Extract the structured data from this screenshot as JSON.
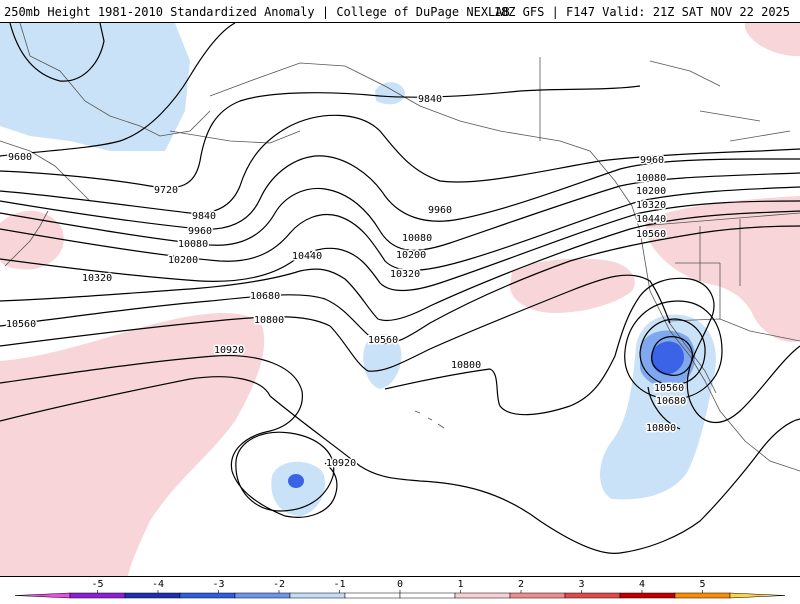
{
  "header": {
    "title_left": "250mb Height 1981-2010 Standardized Anomaly | College of DuPage NEXLAB",
    "title_right": "18Z GFS | F147 Valid: 21Z SAT NOV 22 2025"
  },
  "map": {
    "variable": "250mb geopotential height (m) with standardized anomaly shading",
    "contour_labels": [
      "9600",
      "9720",
      "9840",
      "9960",
      "10080",
      "10200",
      "10320",
      "10440",
      "10560",
      "10680",
      "10800",
      "10920",
      "9840",
      "9960",
      "10080",
      "10200",
      "10320",
      "10560",
      "9960",
      "10080",
      "10200",
      "10320",
      "10440",
      "10560",
      "10560",
      "10680",
      "10800",
      "10920",
      "10800"
    ],
    "colors": {
      "neg_light": "#c9e2f7",
      "neg_mid": "#7fa8ee",
      "neg_strong": "#3b63e8",
      "pos_light": "#f8d5d8",
      "contour": "#000000",
      "coast": "#555555"
    }
  },
  "colorbar": {
    "ticks": [
      "-5",
      "-4",
      "-3",
      "-2",
      "-1",
      "0",
      "1",
      "2",
      "3",
      "4",
      "5"
    ],
    "colors": [
      "#e94ee2",
      "#8e1fd6",
      "#1e2fb5",
      "#2f5de0",
      "#6d95ee",
      "#c4dcf5",
      "#ffffff",
      "#ffffff",
      "#f8cfd3",
      "#ef8d8d",
      "#e14a4a",
      "#c00000",
      "#ff8c00",
      "#ffd24a"
    ]
  }
}
